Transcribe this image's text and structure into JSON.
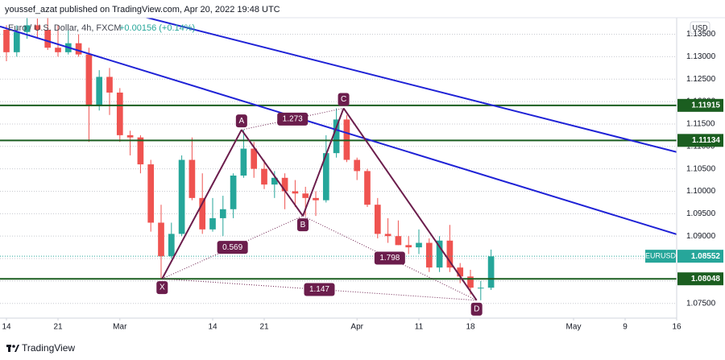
{
  "header": {
    "publisher": "youssef_azat published on TradingView.com, Apr 20, 2022 19:48 UTC",
    "footer": "TradingView"
  },
  "chart_data": {
    "type": "candlestick",
    "title": "Euro / U.S. Dollar, 4h, FXCM",
    "change": "+0.00156 (+0.14%)",
    "currency": "USD",
    "up_color": "#26a69a",
    "down_color": "#ef5350",
    "ohlc": [
      [
        1.136,
        1.137,
        1.129,
        1.131
      ],
      [
        1.131,
        1.137,
        1.13,
        1.1355
      ],
      [
        1.1355,
        1.1395,
        1.134,
        1.137
      ],
      [
        1.137,
        1.1385,
        1.134,
        1.136
      ],
      [
        1.136,
        1.139,
        1.1315,
        1.132
      ],
      [
        1.132,
        1.137,
        1.13,
        1.131
      ],
      [
        1.131,
        1.136,
        1.1305,
        1.133
      ],
      [
        1.133,
        1.135,
        1.13,
        1.1305
      ],
      [
        1.1305,
        1.132,
        1.111,
        1.119
      ],
      [
        1.119,
        1.127,
        1.118,
        1.1255
      ],
      [
        1.1255,
        1.1275,
        1.117,
        1.122
      ],
      [
        1.122,
        1.123,
        1.111,
        1.1125
      ],
      [
        1.1125,
        1.1135,
        1.108,
        1.112
      ],
      [
        1.112,
        1.1125,
        1.104,
        1.106
      ],
      [
        1.106,
        1.107,
        1.091,
        1.093
      ],
      [
        1.093,
        1.097,
        1.0805,
        1.0855
      ],
      [
        1.0855,
        1.093,
        1.085,
        1.0905
      ],
      [
        1.0905,
        1.108,
        1.09,
        1.107
      ],
      [
        1.107,
        1.112,
        1.098,
        1.0985
      ],
      [
        1.0985,
        1.104,
        1.0905,
        1.0915
      ],
      [
        1.0915,
        1.0985,
        1.091,
        1.094
      ],
      [
        1.094,
        1.099,
        1.09,
        1.096
      ],
      [
        1.096,
        1.104,
        1.094,
        1.1035
      ],
      [
        1.1035,
        1.1137,
        1.103,
        1.1095
      ],
      [
        1.1095,
        1.111,
        1.103,
        1.105
      ],
      [
        1.105,
        1.107,
        1.1005,
        1.1015
      ],
      [
        1.1015,
        1.1045,
        1.0985,
        1.103
      ],
      [
        1.103,
        1.104,
        1.096,
        1.1
      ],
      [
        1.1,
        1.1025,
        1.0965,
        1.0995
      ],
      [
        1.0995,
        1.101,
        1.0945,
        1.0985
      ],
      [
        1.0985,
        1.1,
        1.0945,
        1.098
      ],
      [
        1.098,
        1.1125,
        1.0975,
        1.1085
      ],
      [
        1.1085,
        1.1185,
        1.1075,
        1.116
      ],
      [
        1.116,
        1.117,
        1.1065,
        1.107
      ],
      [
        1.107,
        1.1075,
        1.1025,
        1.1045
      ],
      [
        1.1045,
        1.105,
        1.0965,
        1.097
      ],
      [
        1.097,
        1.0985,
        1.0895,
        1.0905
      ],
      [
        1.0905,
        1.094,
        1.0885,
        1.09
      ],
      [
        1.09,
        1.0935,
        1.088,
        1.088
      ],
      [
        1.088,
        1.09,
        1.086,
        1.0875
      ],
      [
        1.0875,
        1.0915,
        1.086,
        1.0885
      ],
      [
        1.0885,
        1.0895,
        1.082,
        1.083
      ],
      [
        1.083,
        1.09,
        1.082,
        1.089
      ],
      [
        1.089,
        1.0925,
        1.082,
        1.083
      ],
      [
        1.083,
        1.084,
        1.0795,
        1.081
      ],
      [
        1.081,
        1.0825,
        1.077,
        1.0785
      ],
      [
        1.0785,
        1.08,
        1.0757,
        1.0785
      ],
      [
        1.0785,
        1.087,
        1.078,
        1.0855
      ]
    ],
    "xlim": [
      -0.625,
      65
    ],
    "xticks": [
      {
        "value": 0,
        "label": "14"
      },
      {
        "value": 5,
        "label": "21"
      },
      {
        "value": 11,
        "label": "Mar"
      },
      {
        "value": 20,
        "label": "14"
      },
      {
        "value": 25,
        "label": "21"
      },
      {
        "value": 34,
        "label": "Apr"
      },
      {
        "value": 40,
        "label": "11"
      },
      {
        "value": 45,
        "label": "18"
      },
      {
        "value": 55,
        "label": "May"
      },
      {
        "value": 60,
        "label": "9"
      },
      {
        "value": 65,
        "label": "16"
      }
    ],
    "ylim": [
      1.07172,
      1.13869
    ],
    "yticks": [
      {
        "value": 1.075,
        "label": "1.07500"
      },
      {
        "value": 1.08,
        "label": "1.08000"
      },
      {
        "value": 1.085,
        "label": "1.08500"
      },
      {
        "value": 1.09,
        "label": "1.09000"
      },
      {
        "value": 1.095,
        "label": "1.09500"
      },
      {
        "value": 1.1,
        "label": "1.10000"
      },
      {
        "value": 1.105,
        "label": "1.10500"
      },
      {
        "value": 1.11,
        "label": "1.11000"
      },
      {
        "value": 1.115,
        "label": "1.11500"
      },
      {
        "value": 1.12,
        "label": "1.12000"
      },
      {
        "value": 1.125,
        "label": "1.12500"
      },
      {
        "value": 1.13,
        "label": "1.13000"
      },
      {
        "value": 1.135,
        "label": "1.13500"
      }
    ],
    "grid": true,
    "levels": [
      1.11915,
      1.11134,
      1.08048
    ],
    "level_color": "#1b5e20",
    "last_price": {
      "symbol": "EURUSD",
      "value": 1.08552,
      "color": "#26a69a"
    },
    "trendlines": [
      {
        "points": [
          [
            4.45,
            1.14407
          ],
          [
            65,
            1.10875
          ]
        ]
      },
      {
        "points": [
          [
            -0.625,
            1.13674
          ],
          [
            65,
            1.0904
          ]
        ]
      }
    ],
    "trend_color": "#1f22d6",
    "pattern": {
      "color": "#6b1d4c",
      "points": [
        {
          "label": "X",
          "x": 15.1,
          "y": 1.0805
        },
        {
          "label": "A",
          "x": 22.8,
          "y": 1.1137
        },
        {
          "label": "B",
          "x": 28.75,
          "y": 1.0945
        },
        {
          "label": "C",
          "x": 32.7,
          "y": 1.1185
        },
        {
          "label": "D",
          "x": 45.6,
          "y": 1.0757
        }
      ],
      "ratios": [
        "0.569",
        "1.273",
        "1.798",
        "1.147"
      ]
    }
  }
}
